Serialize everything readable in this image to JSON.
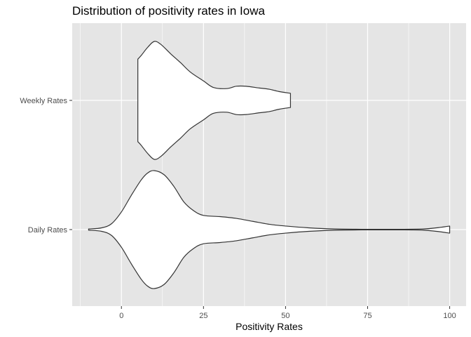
{
  "chart_data": {
    "type": "violin",
    "title": "Distribution of positivity rates in Iowa",
    "xlabel": "Positivity Rates",
    "ylabel": "",
    "xlim": [
      -15,
      105
    ],
    "x_ticks": [
      0,
      25,
      50,
      75,
      100
    ],
    "x_tick_labels": [
      "0",
      "25",
      "50",
      "75",
      "100"
    ],
    "orientation": "horizontal",
    "grid": true,
    "colors": {
      "panel": "#e5e5e5",
      "grid": "#ffffff",
      "violin_fill": "#ffffff",
      "violin_stroke": "#333333"
    },
    "categories": [
      "Weekly Rates",
      "Daily Rates"
    ],
    "series": [
      {
        "name": "Weekly Rates",
        "profile": [
          [
            5,
            0.7
          ],
          [
            6,
            0.76
          ],
          [
            8,
            0.9
          ],
          [
            10,
            1.0
          ],
          [
            12,
            0.95
          ],
          [
            15,
            0.79
          ],
          [
            18,
            0.64
          ],
          [
            21,
            0.48
          ],
          [
            25,
            0.33
          ],
          [
            28,
            0.22
          ],
          [
            32,
            0.2
          ],
          [
            35,
            0.24
          ],
          [
            38,
            0.24
          ],
          [
            42,
            0.21
          ],
          [
            45,
            0.19
          ],
          [
            48,
            0.15
          ],
          [
            51.5,
            0.12
          ]
        ]
      },
      {
        "name": "Daily Rates",
        "profile": [
          [
            -10,
            0.01
          ],
          [
            -6,
            0.03
          ],
          [
            -3,
            0.1
          ],
          [
            0,
            0.3
          ],
          [
            3,
            0.58
          ],
          [
            6,
            0.84
          ],
          [
            8,
            0.96
          ],
          [
            10,
            1.0
          ],
          [
            13,
            0.93
          ],
          [
            16,
            0.73
          ],
          [
            19,
            0.47
          ],
          [
            22,
            0.32
          ],
          [
            25,
            0.24
          ],
          [
            30,
            0.22
          ],
          [
            35,
            0.19
          ],
          [
            40,
            0.14
          ],
          [
            45,
            0.09
          ],
          [
            50,
            0.06
          ],
          [
            57,
            0.03
          ],
          [
            65,
            0.01
          ],
          [
            75,
            0.005
          ],
          [
            85,
            0.005
          ],
          [
            92,
            0.01
          ],
          [
            96,
            0.03
          ],
          [
            100,
            0.06
          ]
        ]
      }
    ]
  }
}
